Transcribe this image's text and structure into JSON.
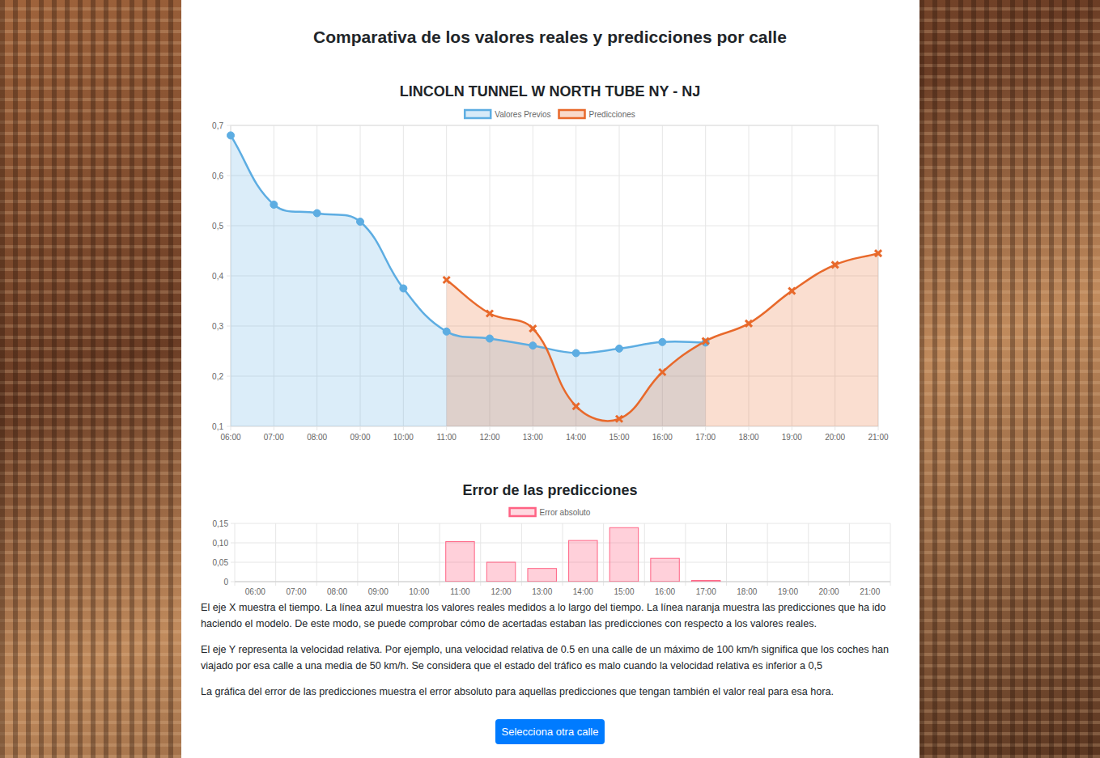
{
  "page": {
    "title": "Comparativa de los valores reales y predicciones por calle",
    "paragraphs": [
      "El eje X muestra el tiempo. La línea azul muestra los valores reales medidos a lo largo del tiempo. La línea naranja muestra las predicciones que ha ido haciendo el modelo. De este modo, se puede comprobar cómo de acertadas estaban las predicciones con respecto a los valores reales.",
      "El eje Y representa la velocidad relativa. Por ejemplo, una velocidad relativa de 0.5 en una calle de un máximo de 100 km/h significa que los coches han viajado por esa calle a una media de 50 km/h. Se considera que el estado del tráfico es malo cuando la velocidad relativa es inferior a 0,5",
      "La gráfica del error de las predicciones muestra el error absoluto para aquellas predicciones que tengan también el valor real para esa hora."
    ],
    "button": "Selecciona otra calle"
  },
  "chart_data": [
    {
      "type": "area",
      "title": "LINCOLN TUNNEL W NORTH TUBE NY - NJ",
      "categories": [
        "06:00",
        "07:00",
        "08:00",
        "09:00",
        "10:00",
        "11:00",
        "12:00",
        "13:00",
        "14:00",
        "15:00",
        "16:00",
        "17:00",
        "18:00",
        "19:00",
        "20:00",
        "21:00"
      ],
      "series": [
        {
          "name": "Valores Previos",
          "color": "#5dade2",
          "marker": "circle",
          "line_style": "smooth",
          "values": [
            0.68,
            0.542,
            0.525,
            0.508,
            0.375,
            0.289,
            0.275,
            0.261,
            0.246,
            0.255,
            0.268,
            0.267,
            null,
            null,
            null,
            null
          ]
        },
        {
          "name": "Predicciones",
          "color": "#e8692b",
          "marker": "cross",
          "line_style": "smooth",
          "values": [
            null,
            null,
            null,
            null,
            null,
            0.392,
            0.325,
            0.295,
            0.14,
            0.115,
            0.208,
            0.27,
            0.305,
            0.37,
            0.422,
            0.445
          ]
        }
      ],
      "ylim": [
        0.1,
        0.7
      ],
      "yticks": [
        {
          "value": 0.1,
          "label": "0,1"
        },
        {
          "value": 0.2,
          "label": "0,2"
        },
        {
          "value": 0.3,
          "label": "0,3"
        },
        {
          "value": 0.4,
          "label": "0,4"
        },
        {
          "value": 0.5,
          "label": "0,5"
        },
        {
          "value": 0.6,
          "label": "0,6"
        },
        {
          "value": 0.7,
          "label": "0,7"
        }
      ],
      "grid": true,
      "legend": "top"
    },
    {
      "type": "bar",
      "title": "Error de las predicciones",
      "categories": [
        "06:00",
        "07:00",
        "08:00",
        "09:00",
        "10:00",
        "11:00",
        "12:00",
        "13:00",
        "14:00",
        "15:00",
        "16:00",
        "17:00",
        "18:00",
        "19:00",
        "20:00",
        "21:00"
      ],
      "series": [
        {
          "name": "Error absoluto",
          "color": "#ff6384",
          "values": [
            null,
            null,
            null,
            null,
            null,
            0.103,
            0.05,
            0.034,
            0.106,
            0.139,
            0.06,
            0.003,
            null,
            null,
            null,
            null
          ]
        }
      ],
      "ylim": [
        0,
        0.15
      ],
      "yticks": [
        0,
        {
          "value": 0.05,
          "label": "0,05"
        },
        {
          "value": 0.1,
          "label": "0,10"
        },
        {
          "value": 0.15,
          "label": "0,15"
        }
      ],
      "grid": true,
      "legend": "top"
    }
  ]
}
